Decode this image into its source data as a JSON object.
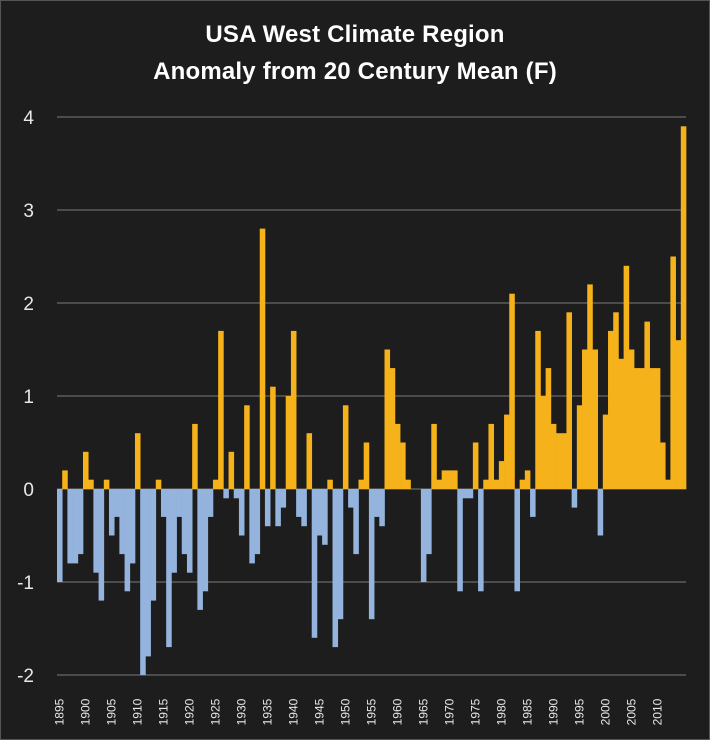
{
  "chart_data": {
    "type": "bar",
    "title": "USA West Climate Region",
    "subtitle": "Anomaly from 20 Century Mean (F)",
    "xlabel": "",
    "ylabel": "",
    "ylim": [
      -2,
      4
    ],
    "yticks": [
      "4",
      "3",
      "2",
      "1",
      "0",
      "-1",
      "-2"
    ],
    "grid": true,
    "x_start": 1895,
    "x_end": 2015,
    "xtick_labels": [
      "1895",
      "1900",
      "1905",
      "1910",
      "1915",
      "1920",
      "1925",
      "1930",
      "1935",
      "1940",
      "1945",
      "1950",
      "1955",
      "1960",
      "1965",
      "1970",
      "1975",
      "1980",
      "1985",
      "1990",
      "1995",
      "2000",
      "2005",
      "2010"
    ],
    "colors": {
      "positive": "#f5b21a",
      "negative": "#94b3dd"
    },
    "values": [
      -1.0,
      0.2,
      -0.8,
      -0.8,
      -0.7,
      0.4,
      0.1,
      -0.9,
      -1.2,
      0.1,
      -0.5,
      -0.3,
      -0.7,
      -1.1,
      -0.8,
      0.6,
      -2.0,
      -1.8,
      -1.2,
      0.1,
      -0.3,
      -1.7,
      -0.9,
      -0.3,
      -0.7,
      -0.9,
      0.7,
      -1.3,
      -1.1,
      -0.3,
      0.1,
      1.7,
      -0.1,
      0.4,
      -0.1,
      -0.5,
      0.9,
      -0.8,
      -0.7,
      2.8,
      -0.4,
      1.1,
      -0.4,
      -0.2,
      1.0,
      1.7,
      -0.3,
      -0.4,
      0.6,
      -1.6,
      -0.5,
      -0.6,
      0.1,
      -1.7,
      -1.4,
      0.9,
      -0.2,
      -0.7,
      0.1,
      0.5,
      -1.4,
      -0.3,
      -0.4,
      1.5,
      1.3,
      0.7,
      0.5,
      0.1,
      0.0,
      0.0,
      -1.0,
      -0.7,
      0.7,
      0.1,
      0.2,
      0.2,
      0.2,
      -1.1,
      -0.1,
      -0.1,
      0.5,
      -1.1,
      0.1,
      0.7,
      0.1,
      0.3,
      0.8,
      2.1,
      -1.1,
      0.1,
      0.2,
      -0.3,
      1.7,
      1.0,
      1.3,
      0.7,
      0.6,
      0.6,
      1.9,
      -0.2,
      0.9,
      1.5,
      2.2,
      1.5,
      -0.5,
      0.8,
      1.7,
      1.9,
      1.4,
      2.4,
      1.5,
      1.3,
      1.3,
      1.8,
      1.3,
      1.3,
      0.5,
      0.1,
      2.5,
      1.6,
      3.9
    ]
  }
}
